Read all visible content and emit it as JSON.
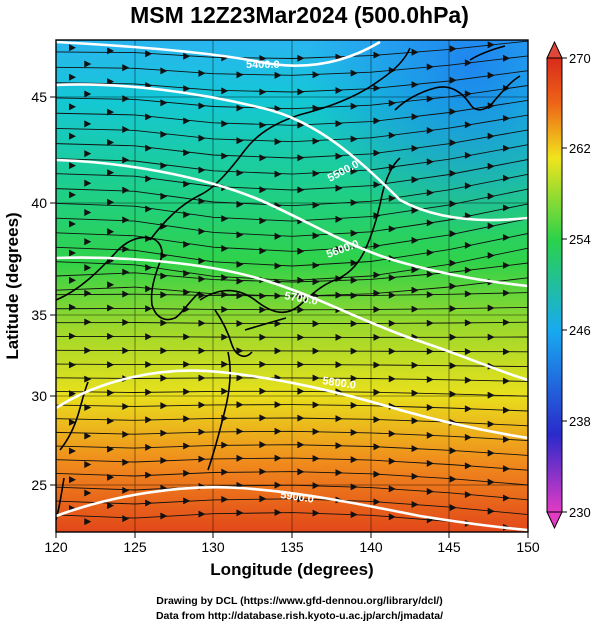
{
  "title": "MSM 12Z23Mar2024 (500.0hPa)",
  "x_axis": {
    "label": "Longitude (degrees)",
    "ticks": [
      "120",
      "125",
      "130",
      "135",
      "140",
      "145",
      "150"
    ]
  },
  "y_axis": {
    "label": "Latitude  (degrees)",
    "ticks": [
      "25",
      "30",
      "35",
      "40",
      "45"
    ]
  },
  "colorbar": {
    "ticks": [
      "230",
      "238",
      "246",
      "254",
      "262",
      "270"
    ],
    "min": 230,
    "max": 270,
    "colors": [
      "#e23bc4",
      "#2a2acb",
      "#18aaf0",
      "#2bd24a",
      "#f0e41c",
      "#ee6418",
      "#d92a1a"
    ]
  },
  "map": {
    "lon_range": [
      120,
      150
    ],
    "lat_range": [
      22.7,
      47.8
    ],
    "field": "temperature (K) shading, wind streamlines",
    "contour_labels": [
      "5400.0",
      "5500.0",
      "5600.0",
      "5700.0",
      "5800.0",
      "5900.0"
    ]
  },
  "credits": {
    "line1": "Drawing by DCL (https://www.gfd-dennou.org/library/dcl/)",
    "line2": "Data from http://database.rish.kyoto-u.ac.jp/arch/jmadata/"
  }
}
